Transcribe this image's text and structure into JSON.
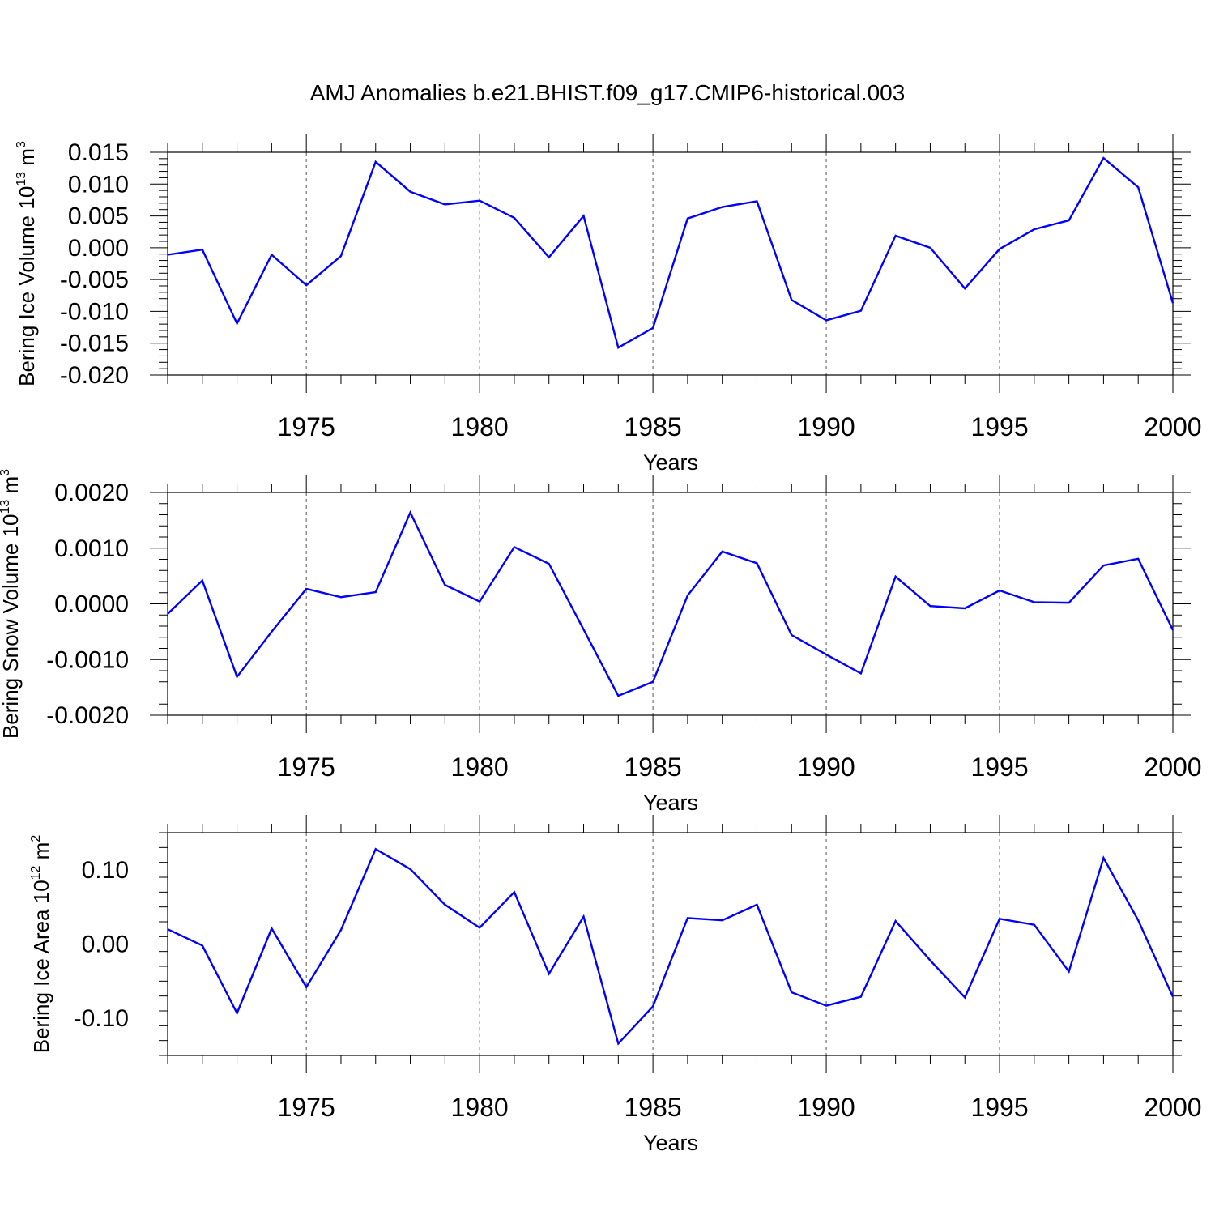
{
  "title": "AMJ Anomalies b.e21.BHIST.f09_g17.CMIP6-historical.003",
  "colors": {
    "line": "#0000ff",
    "axis": "#000000",
    "grid": "#555555"
  },
  "chart_data": [
    {
      "type": "line",
      "ylabel_main": "Bering Ice Volume 10",
      "ylabel_exp": "13",
      "ylabel_unit": " m",
      "ylabel_unit_exp": "3",
      "xlabel": "Years",
      "xlim": [
        1971,
        2000
      ],
      "ylim": [
        -0.02,
        0.015
      ],
      "yticks": [
        -0.02,
        -0.015,
        -0.01,
        -0.005,
        0.0,
        0.005,
        0.01,
        0.015
      ],
      "ytick_labels": [
        "-0.020",
        "-0.015",
        "-0.010",
        "-0.005",
        "0.000",
        "0.005",
        "0.010",
        "0.015"
      ],
      "xticks": [
        1975,
        1980,
        1985,
        1990,
        1995,
        2000
      ],
      "xtick_labels": [
        "1975",
        "1980",
        "1985",
        "1990",
        "1995",
        "2000"
      ],
      "grid_x": [
        1975,
        1980,
        1985,
        1990,
        1995
      ],
      "series": [
        {
          "name": "Bering Ice Volume",
          "x": [
            1971,
            1972,
            1973,
            1974,
            1975,
            1976,
            1977,
            1978,
            1979,
            1980,
            1981,
            1982,
            1983,
            1984,
            1985,
            1986,
            1987,
            1988,
            1989,
            1990,
            1991,
            1992,
            1993,
            1994,
            1995,
            1996,
            1997,
            1998,
            1999,
            2000
          ],
          "values": [
            -0.0011,
            -0.0003,
            -0.0119,
            -0.0011,
            -0.0059,
            -0.0013,
            0.0135,
            0.0088,
            0.0068,
            0.0074,
            0.0047,
            -0.0015,
            0.005,
            -0.0157,
            -0.0126,
            0.0046,
            0.0064,
            0.0073,
            -0.0082,
            -0.0114,
            -0.0099,
            0.0019,
            0.0,
            -0.0064,
            -0.0002,
            0.0029,
            0.0043,
            0.0141,
            0.0095,
            -0.0087
          ]
        }
      ]
    },
    {
      "type": "line",
      "ylabel_main": "Bering Snow Volume 10",
      "ylabel_exp": "13",
      "ylabel_unit": " m",
      "ylabel_unit_exp": "3",
      "xlabel": "Years",
      "xlim": [
        1971,
        2000
      ],
      "ylim": [
        -0.002,
        0.002
      ],
      "yticks": [
        -0.002,
        -0.001,
        0.0,
        0.001,
        0.002
      ],
      "ytick_labels": [
        "-0.0020",
        "-0.0010",
        "0.0000",
        "0.0010",
        "0.0020"
      ],
      "xticks": [
        1975,
        1980,
        1985,
        1990,
        1995,
        2000
      ],
      "xtick_labels": [
        "1975",
        "1980",
        "1985",
        "1990",
        "1995",
        "2000"
      ],
      "grid_x": [
        1975,
        1980,
        1985,
        1990,
        1995
      ],
      "series": [
        {
          "name": "Bering Snow Volume",
          "x": [
            1971,
            1972,
            1973,
            1974,
            1975,
            1976,
            1977,
            1978,
            1979,
            1980,
            1981,
            1982,
            1983,
            1984,
            1985,
            1986,
            1987,
            1988,
            1989,
            1990,
            1991,
            1992,
            1993,
            1994,
            1995,
            1996,
            1997,
            1998,
            1999,
            2000
          ],
          "values": [
            -0.00018,
            0.00042,
            -0.00131,
            -0.0005,
            0.00027,
            0.00012,
            0.00021,
            0.00164,
            0.00034,
            4e-05,
            0.00102,
            0.00072,
            -0.00046,
            -0.00165,
            -0.0014,
            0.00015,
            0.00094,
            0.00073,
            -0.00056,
            -0.00091,
            -0.00125,
            0.00049,
            -4e-05,
            -8e-05,
            0.00024,
            3e-05,
            2e-05,
            0.00069,
            0.00081,
            -0.00047
          ]
        }
      ]
    },
    {
      "type": "line",
      "ylabel_main": "Bering Ice Area 10",
      "ylabel_exp": "12",
      "ylabel_unit": " m",
      "ylabel_unit_exp": "2",
      "xlabel": "Years",
      "xlim": [
        1971,
        2000
      ],
      "ylim": [
        -0.15,
        0.15
      ],
      "yticks": [
        -0.1,
        0.0,
        0.1
      ],
      "ytick_labels": [
        "-0.10",
        "0.00",
        "0.10"
      ],
      "xticks": [
        1975,
        1980,
        1985,
        1990,
        1995,
        2000
      ],
      "xtick_labels": [
        "1975",
        "1980",
        "1985",
        "1990",
        "1995",
        "2000"
      ],
      "grid_x": [
        1975,
        1980,
        1985,
        1990,
        1995
      ],
      "series": [
        {
          "name": "Bering Ice Area",
          "x": [
            1971,
            1972,
            1973,
            1974,
            1975,
            1976,
            1977,
            1978,
            1979,
            1980,
            1981,
            1982,
            1983,
            1984,
            1985,
            1986,
            1987,
            1988,
            1989,
            1990,
            1991,
            1992,
            1993,
            1994,
            1995,
            1996,
            1997,
            1998,
            1999,
            2000
          ],
          "values": [
            0.02,
            -0.002,
            -0.093,
            0.021,
            -0.058,
            0.019,
            0.128,
            0.101,
            0.053,
            0.022,
            0.07,
            -0.04,
            0.037,
            -0.134,
            -0.084,
            0.035,
            0.032,
            0.053,
            -0.065,
            -0.083,
            -0.071,
            0.031,
            -0.022,
            -0.072,
            0.034,
            0.026,
            -0.037,
            0.116,
            0.032,
            -0.071
          ]
        }
      ]
    }
  ]
}
